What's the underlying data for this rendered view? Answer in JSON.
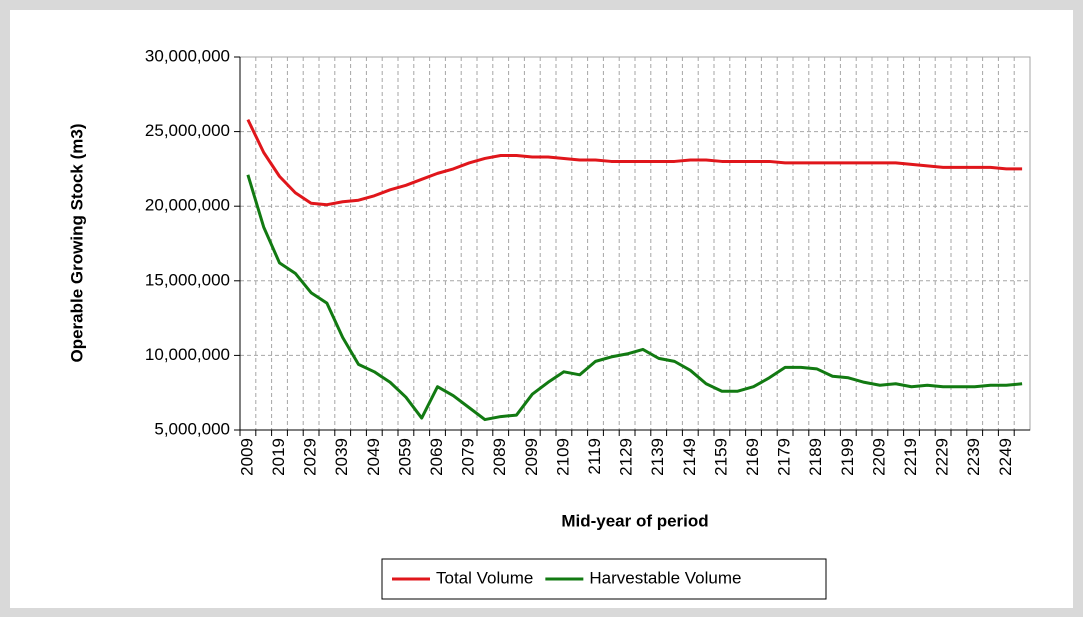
{
  "chart_data": {
    "type": "line",
    "x_label": "Mid-year of period",
    "y_label": "Operable Growing Stock (m3)",
    "categories": [
      "2009",
      null,
      "2019",
      null,
      "2029",
      null,
      "2039",
      null,
      "2049",
      null,
      "2059",
      null,
      "2069",
      null,
      "2079",
      null,
      "2089",
      null,
      "2099",
      null,
      "2109",
      null,
      "2119",
      null,
      "2129",
      null,
      "2139",
      null,
      "2149",
      null,
      "2159",
      null,
      "2169",
      null,
      "2179",
      null,
      "2189",
      null,
      "2199",
      null,
      "2209",
      null,
      "2219",
      null,
      "2229",
      null,
      "2239",
      null,
      "2249",
      null
    ],
    "series": [
      {
        "name": "Total Volume",
        "color": "#e0161b",
        "values": [
          25800000,
          23600000,
          22000000,
          20900000,
          20200000,
          20100000,
          20300000,
          20400000,
          20700000,
          21100000,
          21400000,
          21800000,
          22200000,
          22500000,
          22900000,
          23200000,
          23400000,
          23400000,
          23300000,
          23300000,
          23200000,
          23100000,
          23100000,
          23000000,
          23000000,
          23000000,
          23000000,
          23000000,
          23100000,
          23100000,
          23000000,
          23000000,
          23000000,
          23000000,
          22900000,
          22900000,
          22900000,
          22900000,
          22900000,
          22900000,
          22900000,
          22900000,
          22800000,
          22700000,
          22600000,
          22600000,
          22600000,
          22600000,
          22500000,
          22500000
        ]
      },
      {
        "name": "Harvestable Volume",
        "color": "#127a12",
        "values": [
          22100000,
          18600000,
          16200000,
          15500000,
          14200000,
          13500000,
          11200000,
          9400000,
          8900000,
          8200000,
          7200000,
          5800000,
          7900000,
          7300000,
          6500000,
          5700000,
          5900000,
          6000000,
          7400000,
          8200000,
          8900000,
          8700000,
          9600000,
          9900000,
          10100000,
          10400000,
          9800000,
          9600000,
          9000000,
          8100000,
          7600000,
          7600000,
          7900000,
          8500000,
          9200000,
          9200000,
          9100000,
          8600000,
          8500000,
          8200000,
          8000000,
          8100000,
          7900000,
          8000000,
          7900000,
          7900000,
          7900000,
          8000000,
          8000000,
          8100000
        ]
      }
    ],
    "ylim": [
      5000000,
      30000000
    ],
    "yticks": [
      {
        "value": 5000000,
        "label": "5,000,000"
      },
      {
        "value": 10000000,
        "label": "10,000,000"
      },
      {
        "value": 15000000,
        "label": "15,000,000"
      },
      {
        "value": 20000000,
        "label": "20,000,000"
      },
      {
        "value": 25000000,
        "label": "25,000,000"
      },
      {
        "value": 30000000,
        "label": "30,000,000"
      }
    ],
    "grid": true,
    "legend": "bottom"
  }
}
